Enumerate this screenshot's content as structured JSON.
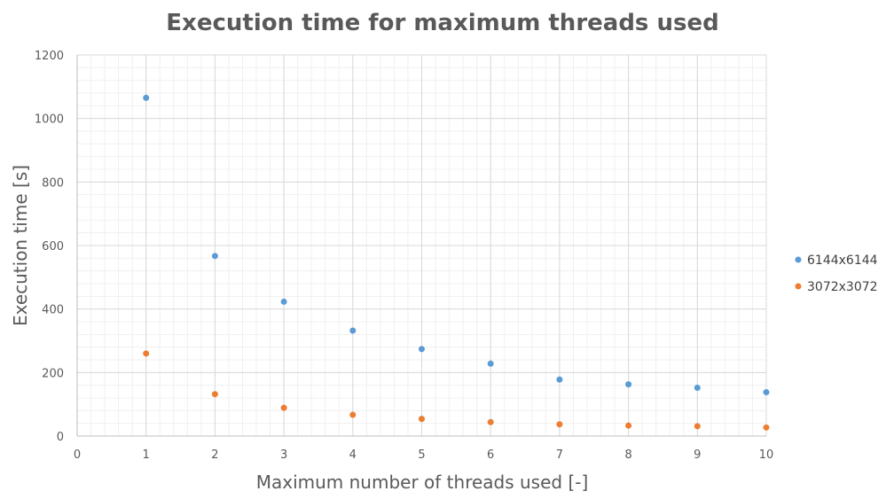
{
  "chart_data": {
    "type": "scatter",
    "title": "Execution time for maximum threads used",
    "xlabel": "Maximum number of threads used [-]",
    "ylabel": "Execution time [s]",
    "xlim": [
      0,
      10
    ],
    "ylim": [
      0,
      1200
    ],
    "xticks": [
      0,
      1,
      2,
      3,
      4,
      5,
      6,
      7,
      8,
      9,
      10
    ],
    "yticks": [
      0,
      200,
      400,
      600,
      800,
      1000,
      1200
    ],
    "grid": true,
    "minor_grid": true,
    "legend_position": "right",
    "series": [
      {
        "name": "6144x6144",
        "color": "#5B9BD5",
        "x": [
          1,
          2,
          3,
          4,
          5,
          6,
          7,
          8,
          9,
          10
        ],
        "y": [
          1065,
          567,
          423,
          332,
          274,
          228,
          178,
          163,
          152,
          138
        ]
      },
      {
        "name": "3072x3072",
        "color": "#ED7D31",
        "x": [
          1,
          2,
          3,
          4,
          5,
          6,
          7,
          8,
          9,
          10
        ],
        "y": [
          260,
          132,
          89,
          67,
          54,
          44,
          37,
          33,
          31,
          27
        ]
      }
    ]
  }
}
